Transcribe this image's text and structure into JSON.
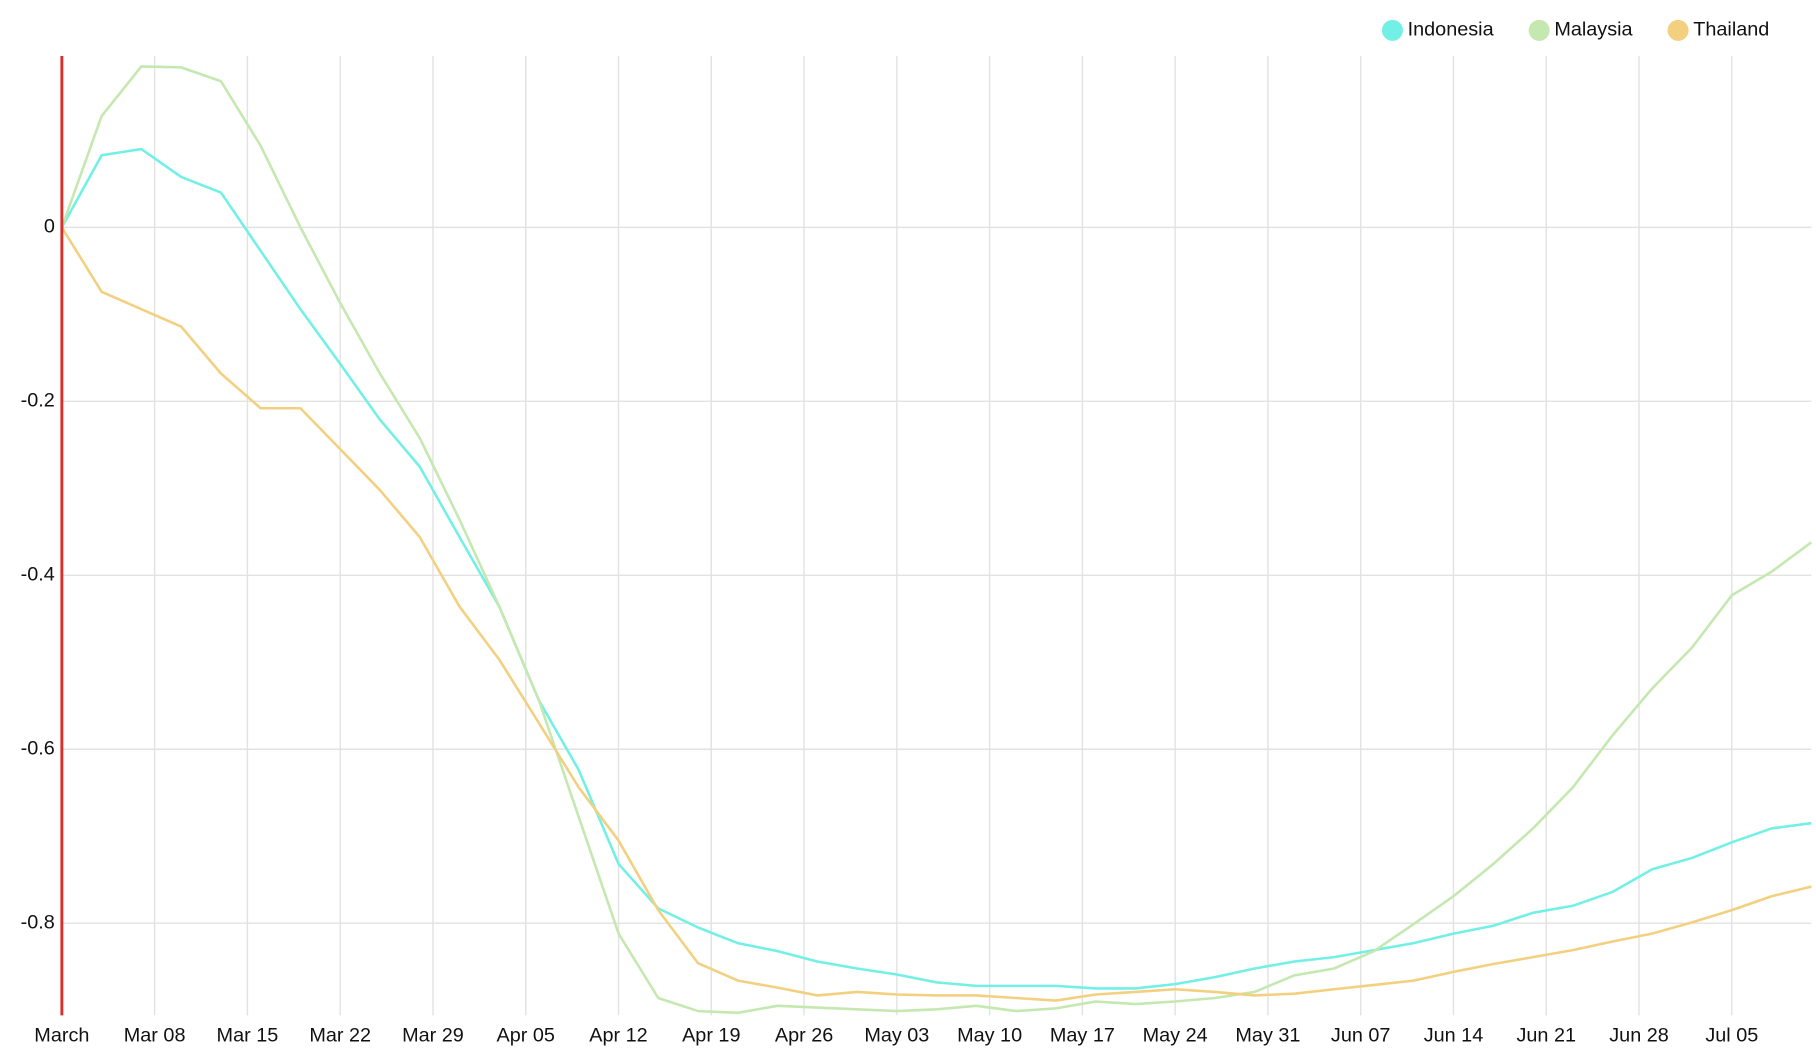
{
  "chart_data": {
    "type": "line",
    "x": [
      "Mar 01",
      "Mar 04",
      "Mar 07",
      "Mar 10",
      "Mar 13",
      "Mar 16",
      "Mar 19",
      "Mar 22",
      "Mar 25",
      "Mar 28",
      "Mar 31",
      "Apr 03",
      "Apr 06",
      "Apr 09",
      "Apr 12",
      "Apr 15",
      "Apr 18",
      "Apr 21",
      "Apr 24",
      "Apr 27",
      "Apr 30",
      "May 03",
      "May 06",
      "May 09",
      "May 12",
      "May 15",
      "May 18",
      "May 21",
      "May 24",
      "May 27",
      "May 30",
      "Jun 02",
      "Jun 05",
      "Jun 08",
      "Jun 11",
      "Jun 14",
      "Jun 17",
      "Jun 20",
      "Jun 23",
      "Jun 26",
      "Jun 29",
      "Jul 02",
      "Jul 05",
      "Jul 08",
      "Jul 11"
    ],
    "series": [
      {
        "name": "Indonesia",
        "color": "#72f0e5",
        "values": [
          0,
          0.083,
          0.09,
          0.058,
          0.04,
          -0.027,
          -0.094,
          -0.157,
          -0.221,
          -0.275,
          -0.356,
          -0.436,
          -0.544,
          -0.624,
          -0.732,
          -0.783,
          -0.805,
          -0.823,
          -0.832,
          -0.844,
          -0.852,
          -0.859,
          -0.868,
          -0.872,
          -0.872,
          -0.872,
          -0.875,
          -0.875,
          -0.87,
          -0.862,
          -0.852,
          -0.844,
          -0.839,
          -0.831,
          -0.823,
          -0.812,
          -0.803,
          -0.788,
          -0.78,
          -0.764,
          -0.738,
          -0.725,
          -0.707,
          -0.691,
          -0.685
        ]
      },
      {
        "name": "Malaysia",
        "color": "#c4e8b0",
        "values": [
          0,
          0.128,
          0.185,
          0.184,
          0.168,
          0.094,
          0,
          -0.087,
          -0.168,
          -0.242,
          -0.336,
          -0.436,
          -0.544,
          -0.678,
          -0.812,
          -0.886,
          -0.901,
          -0.903,
          -0.895,
          -0.897,
          -0.899,
          -0.901,
          -0.899,
          -0.895,
          -0.901,
          -0.898,
          -0.89,
          -0.893,
          -0.89,
          -0.886,
          -0.879,
          -0.86,
          -0.852,
          -0.832,
          -0.801,
          -0.769,
          -0.732,
          -0.691,
          -0.644,
          -0.584,
          -0.53,
          -0.483,
          -0.423,
          -0.396,
          -0.362
        ]
      },
      {
        "name": "Thailand",
        "color": "#f3d07f",
        "values": [
          0,
          -0.074,
          -0.094,
          -0.114,
          -0.168,
          -0.208,
          -0.208,
          -0.255,
          -0.302,
          -0.356,
          -0.436,
          -0.497,
          -0.57,
          -0.644,
          -0.705,
          -0.785,
          -0.846,
          -0.866,
          -0.874,
          -0.883,
          -0.879,
          -0.882,
          -0.883,
          -0.883,
          -0.886,
          -0.889,
          -0.882,
          -0.879,
          -0.876,
          -0.879,
          -0.883,
          -0.881,
          -0.876,
          -0.871,
          -0.866,
          -0.856,
          -0.847,
          -0.839,
          -0.831,
          -0.821,
          -0.812,
          -0.799,
          -0.785,
          -0.769,
          -0.758
        ]
      }
    ],
    "xlim": [
      "Mar 01",
      "Jul 11"
    ],
    "xticks": [
      {
        "value": "Mar 01",
        "label": "March"
      },
      "Mar 08",
      "Mar 15",
      "Mar 22",
      "Mar 29",
      "Apr 05",
      "Apr 12",
      "Apr 19",
      "Apr 26",
      "May 03",
      "May 10",
      "May 17",
      "May 24",
      "May 31",
      "Jun 07",
      "Jun 14",
      "Jun 21",
      "Jun 28",
      "Jul 05"
    ],
    "ylim": [
      -0.906,
      0.197
    ],
    "yticks": [
      0,
      -0.2,
      -0.4,
      -0.6,
      -0.8
    ],
    "grid": true,
    "legend": "top-right"
  }
}
